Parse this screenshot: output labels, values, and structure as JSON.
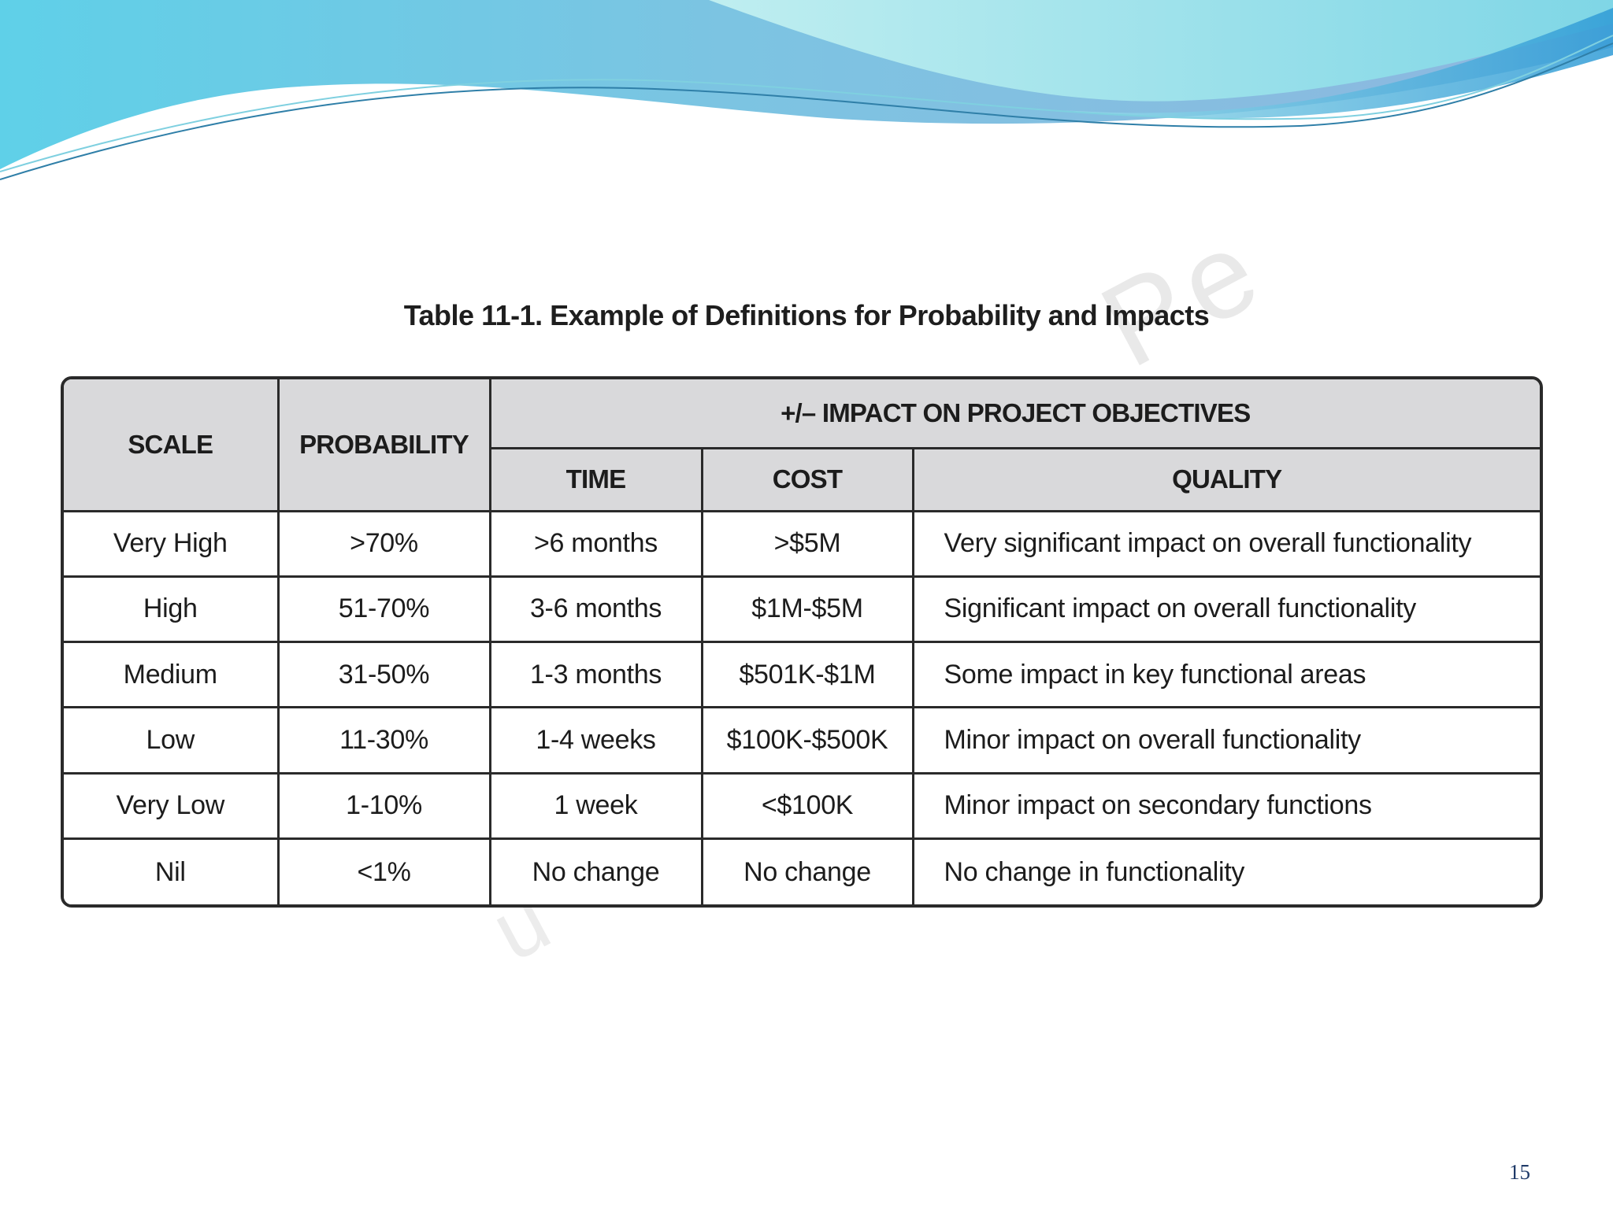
{
  "slide": {
    "caption": "Table 11-1. Example of Definitions for Probability and Impacts",
    "page_number": "15"
  },
  "table": {
    "headers": {
      "scale": "SCALE",
      "probability": "PROBABILITY",
      "impact_group": "+/– IMPACT ON PROJECT OBJECTIVES",
      "time": "TIME",
      "cost": "COST",
      "quality": "QUALITY"
    },
    "rows": [
      {
        "scale": "Very High",
        "probability": ">70%",
        "time": ">6 months",
        "cost": ">$5M",
        "quality": "Very significant impact on overall functionality"
      },
      {
        "scale": "High",
        "probability": "51-70%",
        "time": "3-6 months",
        "cost": "$1M-$5M",
        "quality": "Significant impact on overall functionality"
      },
      {
        "scale": "Medium",
        "probability": "31-50%",
        "time": "1-3 months",
        "cost": "$501K-$1M",
        "quality": "Some impact in key functional areas"
      },
      {
        "scale": "Low",
        "probability": "11-30%",
        "time": "1-4 weeks",
        "cost": "$100K-$500K",
        "quality": "Minor impact on overall functionality"
      },
      {
        "scale": "Very Low",
        "probability": "1-10%",
        "time": "1 week",
        "cost": "<$100K",
        "quality": "Minor impact on secondary functions"
      },
      {
        "scale": "Nil",
        "probability": "<1%",
        "time": "No change",
        "cost": "No change",
        "quality": "No change in functionality"
      }
    ]
  },
  "colors": {
    "header_bg": "#d9d9db",
    "border": "#2a2a2a",
    "banner_light": "#aee6ea",
    "banner_mid": "#6fc3dc",
    "banner_deep": "#3aa0cf",
    "page_number": "#1f3a68"
  }
}
